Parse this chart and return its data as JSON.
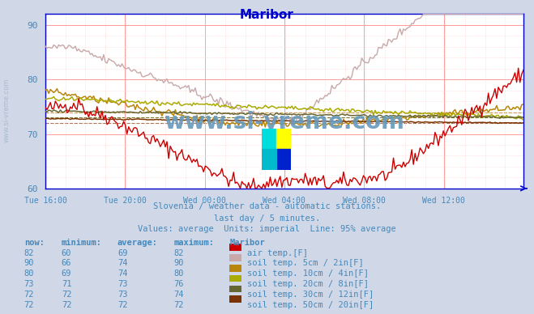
{
  "title": "Maribor",
  "title_color": "#0000cc",
  "background_color": "#d0d8e8",
  "plot_bg_color": "#ffffff",
  "grid_color_major": "#ff9999",
  "grid_color_minor": "#ffcccc",
  "xlabel_color": "#4488bb",
  "text_color": "#4488bb",
  "ylim": [
    60,
    92
  ],
  "yticks": [
    60,
    70,
    80,
    90
  ],
  "xticklabels": [
    "Tue 16:00",
    "Tue 20:00",
    "Wed 00:00",
    "Wed 04:00",
    "Wed 08:00",
    "Wed 12:00"
  ],
  "subtitle1": "Slovenia / weather data - automatic stations.",
  "subtitle2": "last day / 5 minutes.",
  "subtitle3": "Values: average  Units: imperial  Line: 95% average",
  "legend_header": "Maribor",
  "legend_entries": [
    {
      "label": "air temp.[F]",
      "color": "#cc0000",
      "now": 82,
      "min": 60,
      "avg": 69,
      "max": 82
    },
    {
      "label": "soil temp. 5cm / 2in[F]",
      "color": "#c8a8a8",
      "now": 90,
      "min": 66,
      "avg": 74,
      "max": 90
    },
    {
      "label": "soil temp. 10cm / 4in[F]",
      "color": "#b8860b",
      "now": 80,
      "min": 69,
      "avg": 74,
      "max": 80
    },
    {
      "label": "soil temp. 20cm / 8in[F]",
      "color": "#aaaa00",
      "now": 73,
      "min": 71,
      "avg": 73,
      "max": 76
    },
    {
      "label": "soil temp. 30cm / 12in[F]",
      "color": "#666633",
      "now": 72,
      "min": 72,
      "avg": 73,
      "max": 74
    },
    {
      "label": "soil temp. 50cm / 20in[F]",
      "color": "#7a3300",
      "now": 72,
      "min": 72,
      "avg": 72,
      "max": 72
    }
  ],
  "watermark": "www.si-vreme.com",
  "watermark_color": "#6699bb",
  "axis_color": "#0000cc",
  "n_points": 288,
  "logo_colors": [
    "#00cccc",
    "#ffff00",
    "#0000cc",
    "#00aaaa"
  ]
}
